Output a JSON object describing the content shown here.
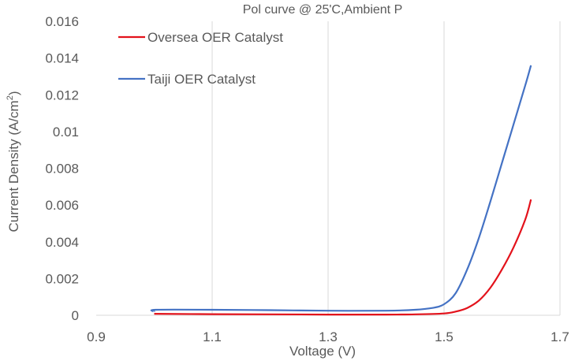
{
  "chart_data": {
    "type": "line",
    "title": "Pol curve @ 25'C,Ambient P",
    "xlabel": "Voltage (V)",
    "ylabel_main": "Current Density (A/cm",
    "ylabel_sup": "2",
    "ylabel_end": ")",
    "xlim": [
      0.9,
      1.7
    ],
    "ylim": [
      0,
      0.016
    ],
    "x_ticks": [
      0.9,
      1.1,
      1.3,
      1.5,
      1.7
    ],
    "x_tick_labels": [
      "0.9",
      "1.1",
      "1.3",
      "1.5",
      "1.7"
    ],
    "y_ticks": [
      0,
      0.002,
      0.004,
      0.006,
      0.008,
      0.01,
      0.012,
      0.014,
      0.016
    ],
    "y_tick_labels": [
      "0",
      "0.002",
      "0.004",
      "0.006",
      "0.008",
      "0.01",
      "0.012",
      "0.014",
      "0.016"
    ],
    "grid": "vertical",
    "legend_position": "top-left",
    "series": [
      {
        "name": "Oversea OER Catalyst",
        "color": "#e3121b",
        "points": [
          [
            1.0,
            8e-05
          ],
          [
            1.1,
            6e-05
          ],
          [
            1.2,
            5e-05
          ],
          [
            1.3,
            4e-05
          ],
          [
            1.4,
            4e-05
          ],
          [
            1.45,
            5e-05
          ],
          [
            1.5,
            0.0001
          ],
          [
            1.52,
            0.0002
          ],
          [
            1.54,
            0.0004
          ],
          [
            1.56,
            0.0008
          ],
          [
            1.58,
            0.0015
          ],
          [
            1.6,
            0.0025
          ],
          [
            1.62,
            0.0037
          ],
          [
            1.64,
            0.0052
          ],
          [
            1.65,
            0.0063
          ]
        ]
      },
      {
        "name": "Taiji OER Catalyst",
        "color": "#4472c4",
        "points": [
          [
            1.0,
            0.0002
          ],
          [
            1.003,
            0.0003
          ],
          [
            1.1,
            0.0003
          ],
          [
            1.2,
            0.00028
          ],
          [
            1.3,
            0.00025
          ],
          [
            1.4,
            0.00025
          ],
          [
            1.45,
            0.0003
          ],
          [
            1.48,
            0.0004
          ],
          [
            1.5,
            0.0006
          ],
          [
            1.52,
            0.0012
          ],
          [
            1.54,
            0.0025
          ],
          [
            1.56,
            0.0042
          ],
          [
            1.58,
            0.0062
          ],
          [
            1.6,
            0.0083
          ],
          [
            1.62,
            0.0104
          ],
          [
            1.64,
            0.0125
          ],
          [
            1.65,
            0.0136
          ]
        ]
      }
    ]
  }
}
